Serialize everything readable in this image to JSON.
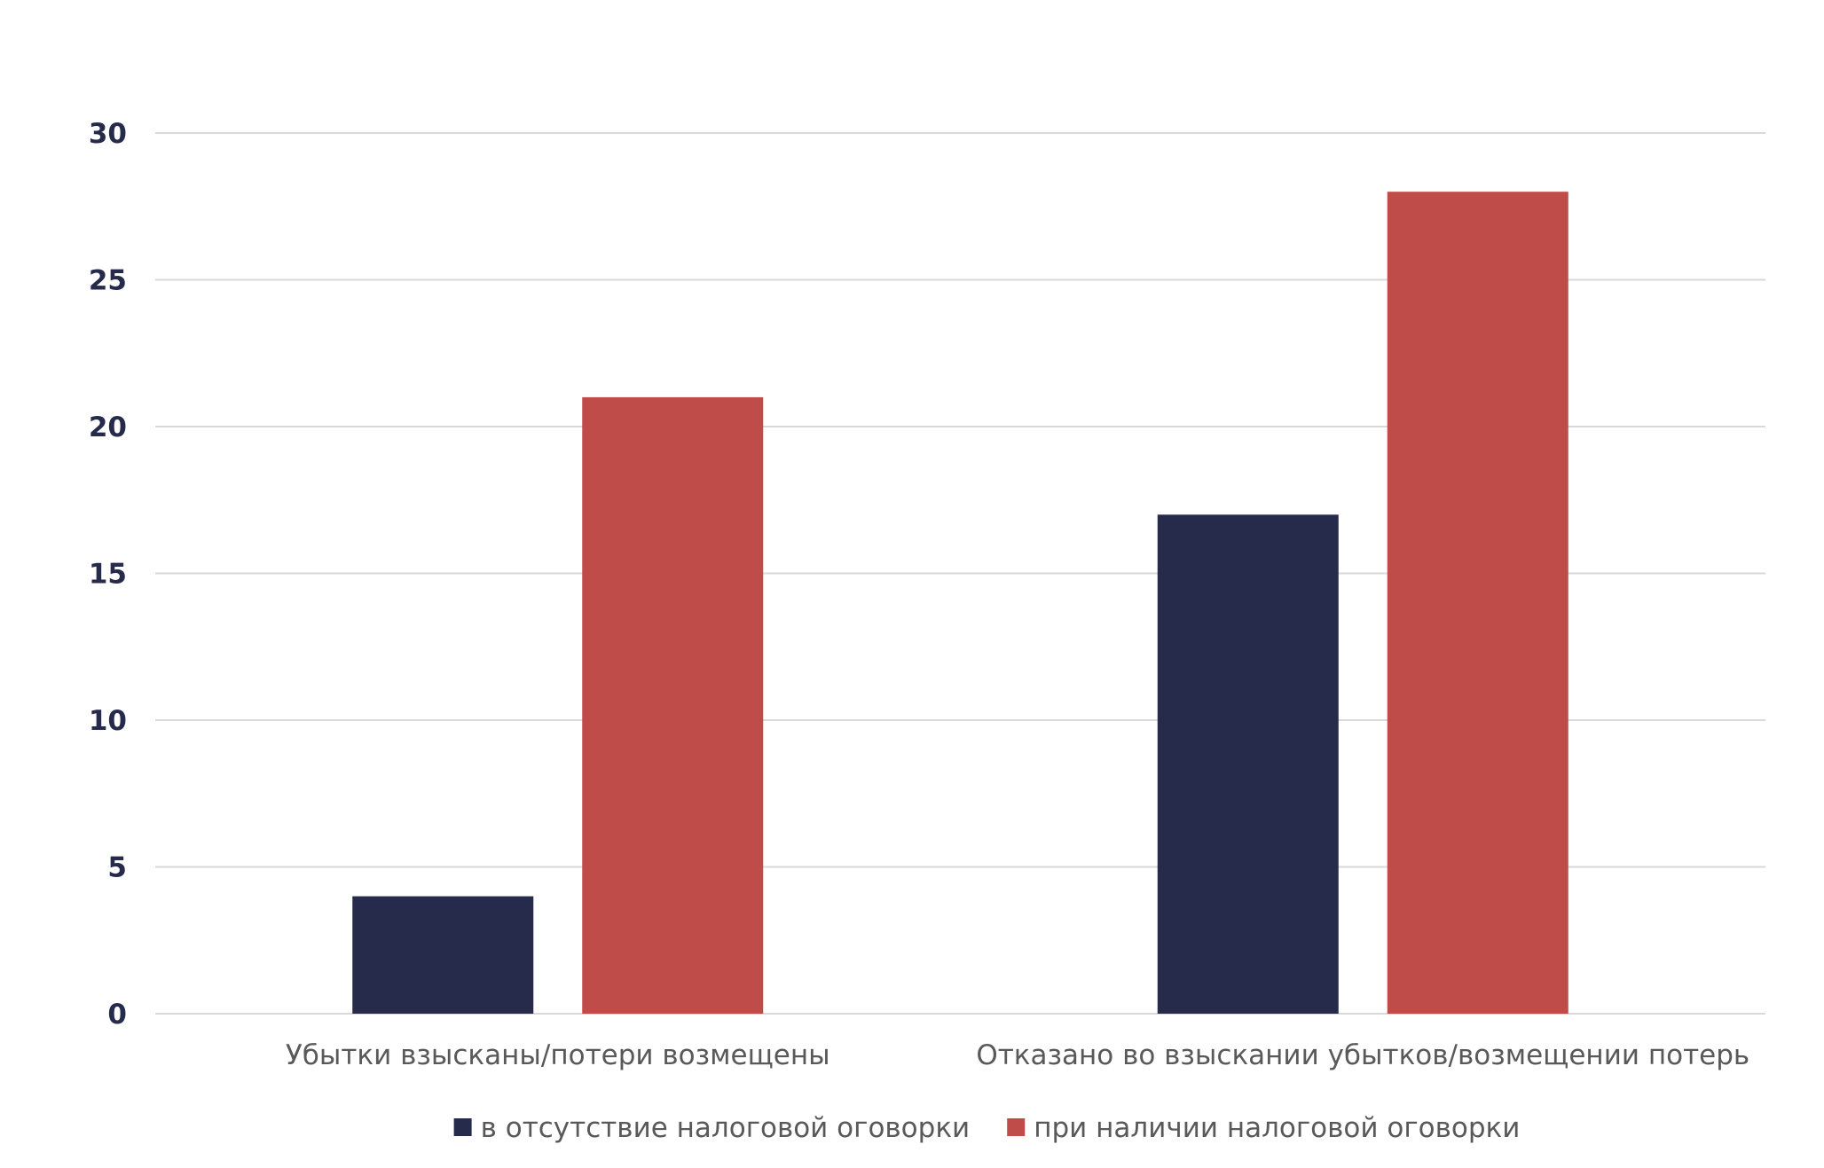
{
  "chart_data": {
    "type": "bar",
    "title": "",
    "xlabel": "",
    "ylabel": "",
    "categories": [
      "Убытки взысканы/потери возмещены",
      "Отказано во взыскании убытков/возмещении потерь"
    ],
    "series": [
      {
        "name": "в отсутствие налоговой оговорки",
        "values": [
          4,
          17
        ],
        "color": "#262a4b"
      },
      {
        "name": "при наличии налоговой оговорки",
        "values": [
          21,
          28
        ],
        "color": "#c04c4a"
      }
    ],
    "ylim": [
      0,
      30
    ],
    "yticks": [
      "0",
      "5",
      "10",
      "15",
      "20",
      "25",
      "30"
    ],
    "grid": true,
    "legend_position": "bottom-center",
    "colors": {
      "grid": "#d9d9d9",
      "text": "#262a4b",
      "label_text": "#595959"
    }
  }
}
